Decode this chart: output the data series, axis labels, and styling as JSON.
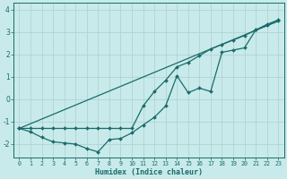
{
  "xlabel": "Humidex (Indice chaleur)",
  "background_color": "#c8eaea",
  "grid_color": "#afd4d4",
  "line_color": "#1a6b6b",
  "xlim": [
    -0.5,
    23.5
  ],
  "ylim": [
    -2.6,
    4.3
  ],
  "xticks": [
    0,
    1,
    2,
    3,
    4,
    5,
    6,
    7,
    8,
    9,
    10,
    11,
    12,
    13,
    14,
    15,
    16,
    17,
    18,
    19,
    20,
    21,
    22,
    23
  ],
  "yticks": [
    -2,
    -1,
    0,
    1,
    2,
    3,
    4
  ],
  "line1_x": [
    0,
    1,
    2,
    3,
    4,
    5,
    6,
    7,
    8,
    9,
    10,
    11,
    12,
    13,
    14,
    15,
    16,
    17,
    18,
    19,
    20,
    21,
    22,
    23
  ],
  "line1_y": [
    -1.3,
    -1.45,
    -1.7,
    -1.9,
    -1.95,
    -2.0,
    -2.2,
    -2.35,
    -1.8,
    -1.75,
    -1.5,
    -1.15,
    -0.8,
    -0.3,
    1.05,
    0.3,
    0.5,
    0.35,
    2.1,
    2.2,
    2.3,
    3.1,
    3.35,
    3.55
  ],
  "line2_x": [
    0,
    1,
    2,
    3,
    4,
    5,
    6,
    7,
    8,
    9,
    10,
    11,
    12,
    13,
    14,
    15,
    16,
    17,
    18,
    19,
    20,
    21,
    22,
    23
  ],
  "line2_y": [
    -1.3,
    -1.3,
    -1.3,
    -1.3,
    -1.3,
    -1.3,
    -1.3,
    -1.3,
    -1.3,
    -1.3,
    -1.3,
    -0.3,
    0.35,
    0.85,
    1.45,
    1.65,
    1.95,
    2.25,
    2.45,
    2.65,
    2.85,
    3.1,
    3.3,
    3.5
  ],
  "line3_x": [
    0,
    23
  ],
  "line3_y": [
    -1.3,
    3.5
  ]
}
